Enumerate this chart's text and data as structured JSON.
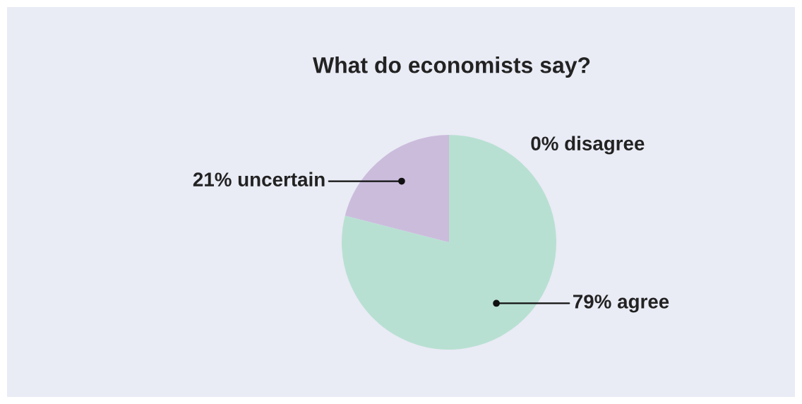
{
  "chart_data": {
    "type": "pie",
    "title": "What do economists say?",
    "categories": [
      "79% agree",
      "21% uncertain",
      "0% disagree"
    ],
    "values": [
      79,
      21,
      0
    ],
    "colors": [
      "#b8e0d2",
      "#cbbcdc",
      "#f2c6c6"
    ]
  }
}
